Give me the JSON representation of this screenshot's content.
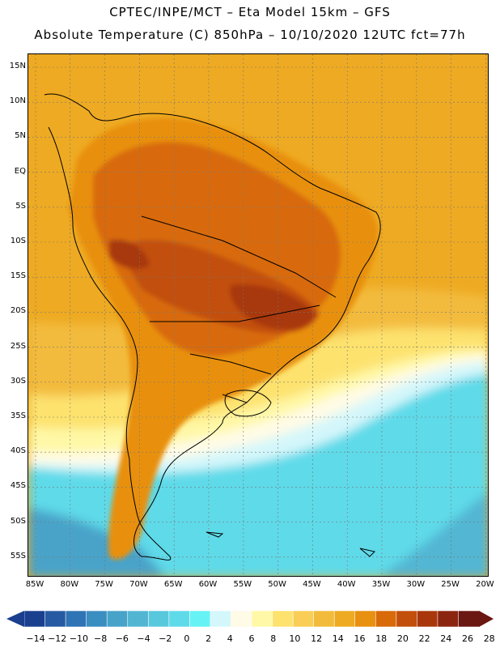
{
  "header": {
    "line1": "CPTEC/INPE/MCT –  Eta Model 15km – GFS",
    "line2": "Absolute Temperature (C) 850hPa – 10/10/2020 12UTC fct=77h"
  },
  "map": {
    "lat_labels": [
      "15N",
      "10N",
      "5N",
      "EQ",
      "5S",
      "10S",
      "15S",
      "20S",
      "25S",
      "30S",
      "35S",
      "40S",
      "45S",
      "50S",
      "55S"
    ],
    "lon_labels": [
      "85W",
      "80W",
      "75W",
      "70W",
      "65W",
      "60W",
      "55W",
      "50W",
      "45W",
      "40W",
      "35W",
      "30W",
      "25W",
      "20W"
    ]
  },
  "legend": {
    "labels": [
      "-14",
      "-12",
      "-10",
      "-8",
      "-6",
      "-4",
      "-2",
      "0",
      "2",
      "4",
      "6",
      "8",
      "10",
      "12",
      "14",
      "16",
      "18",
      "20",
      "22",
      "24",
      "26",
      "28"
    ],
    "colors": [
      "#1a3f8f",
      "#265aa3",
      "#2f74b4",
      "#3b8ec0",
      "#48a3c9",
      "#52b6d3",
      "#58c8dd",
      "#5fdae9",
      "#67f2f5",
      "#d4f7fb",
      "#fffbe6",
      "#fff8a6",
      "#fde26e",
      "#f9cd56",
      "#f3bb3c",
      "#eeaa22",
      "#e8900f",
      "#d86a0a",
      "#c24f0c",
      "#a8380b",
      "#8c2510",
      "#6b1712"
    ]
  }
}
